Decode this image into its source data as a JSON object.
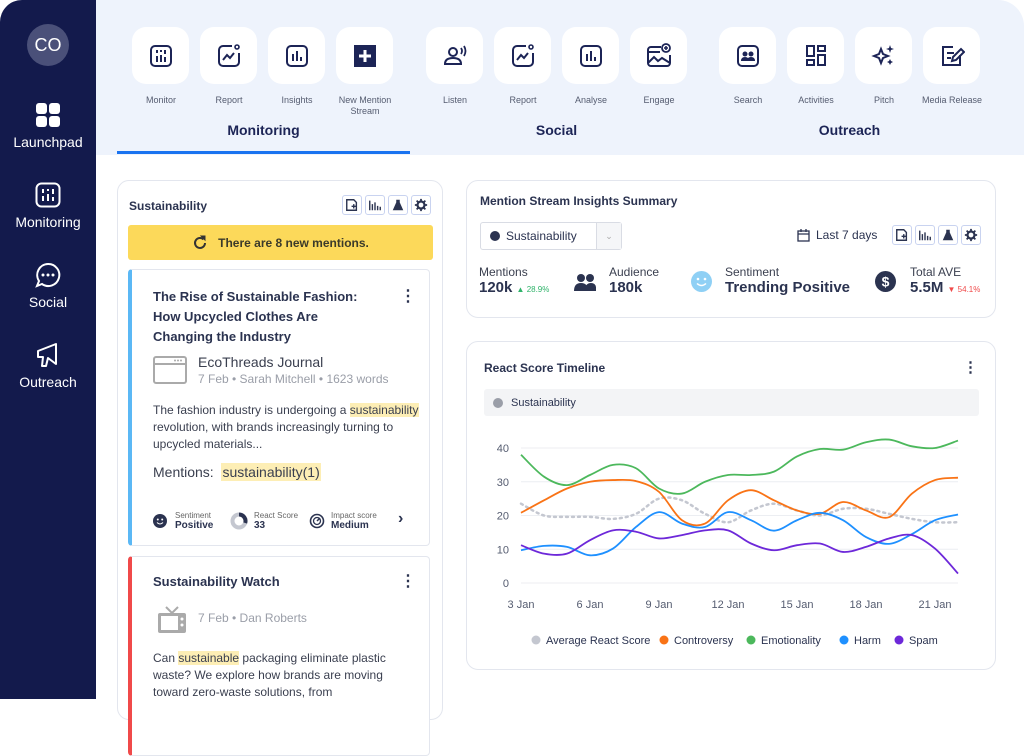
{
  "sidebar": {
    "avatar": "CO",
    "items": [
      {
        "label": "Launchpad",
        "icon": "grid-icon"
      },
      {
        "label": "Monitoring",
        "icon": "monitor-icon"
      },
      {
        "label": "Social",
        "icon": "chat-icon"
      },
      {
        "label": "Outreach",
        "icon": "megaphone-icon"
      }
    ]
  },
  "topnav": {
    "groups": [
      {
        "label": "Monitoring",
        "active": true,
        "items": [
          "Monitor",
          "Report",
          "Insights",
          "New Mention Stream"
        ]
      },
      {
        "label": "Social",
        "items": [
          "Listen",
          "Report",
          "Analyse",
          "Engage"
        ]
      },
      {
        "label": "Outreach",
        "items": [
          "Search",
          "Activities",
          "Pitch",
          "Media Release"
        ]
      }
    ]
  },
  "stream": {
    "title": "Sustainability",
    "banner": "There are 8 new mentions.",
    "mentions": [
      {
        "title": "The Rise of Sustainable Fashion: How Upcycled Clothes Are Changing the Industry",
        "source": "EcoThreads Journal",
        "meta": "7 Feb • Sarah Mitchell • 1623 words",
        "excerpt_pre": "The fashion industry is undergoing a ",
        "excerpt_hl": "sustainability",
        "excerpt_post": " revolution, with brands increasingly turning to upcycled materials...",
        "mentions_label": "Mentions:",
        "mentions_value": "sustainability(1)",
        "sentiment_label": "Sentiment",
        "sentiment": "Positive",
        "react_label": "React Score",
        "react": "33",
        "impact_label": "Impact score",
        "impact": "Medium",
        "accent": "#5bb8f5"
      },
      {
        "title": "Sustainability Watch",
        "meta": "7 Feb • Dan Roberts",
        "excerpt_pre": "Can ",
        "excerpt_hl": "sustainable",
        "excerpt_post": " packaging eliminate plastic waste? We explore how brands are moving toward zero-waste solutions, from",
        "accent": "#f04a4a"
      }
    ]
  },
  "summary": {
    "title": "Mention Stream Insights Summary",
    "select": "Sustainability",
    "range": "Last 7 days",
    "mentions_label": "Mentions",
    "mentions": "120k",
    "mentions_change": "28.9%",
    "audience_label": "Audience",
    "audience": "180k",
    "sentiment_label": "Sentiment",
    "sentiment": "Trending Positive",
    "ave_label": "Total AVE",
    "ave": "5.5M",
    "ave_change": "54.1%"
  },
  "timeline": {
    "title": "React Score Timeline",
    "filter": "Sustainability"
  },
  "chart_data": {
    "type": "line",
    "title": "React Score Timeline",
    "xlabel": "",
    "ylabel": "",
    "ylim": [
      0,
      40
    ],
    "yticks": [
      0,
      10,
      20,
      30,
      40
    ],
    "xticks": [
      "3 Jan",
      "6 Jan",
      "9 Jan",
      "12 Jan",
      "15 Jan",
      "18 Jan",
      "21 Jan"
    ],
    "x": [
      "3 Jan",
      "4 Jan",
      "5 Jan",
      "6 Jan",
      "7 Jan",
      "8 Jan",
      "9 Jan",
      "10 Jan",
      "11 Jan",
      "12 Jan",
      "13 Jan",
      "14 Jan",
      "15 Jan",
      "16 Jan",
      "17 Jan",
      "18 Jan",
      "19 Jan",
      "20 Jan",
      "21 Jan",
      "22 Jan"
    ],
    "grid": true,
    "legend": "bottom",
    "series": [
      {
        "name": "Average React Score",
        "color": "#c4c7d0",
        "dashed": true,
        "values": [
          23.5,
          20,
          19.6,
          19.6,
          19,
          20.5,
          25,
          24.5,
          20.5,
          18,
          21.5,
          23.5,
          21.5,
          20,
          22,
          22,
          20.5,
          19,
          18,
          18
        ]
      },
      {
        "name": "Controversy",
        "color": "#f97316",
        "values": [
          20.8,
          24.5,
          28,
          30,
          30.5,
          30.2,
          27,
          18.6,
          17.6,
          24.5,
          27.5,
          24.5,
          21.5,
          20.5,
          24,
          21.5,
          19.5,
          26.5,
          30.5,
          31.2
        ]
      },
      {
        "name": "Emotionality",
        "color": "#4cb85c",
        "values": [
          38,
          31.5,
          29,
          32,
          35,
          34,
          28,
          26.5,
          30,
          32,
          32,
          33,
          37.5,
          39.7,
          39.5,
          41.7,
          42.5,
          40.5,
          40,
          42.2
        ]
      },
      {
        "name": "Harm",
        "color": "#1e90ff",
        "values": [
          9.7,
          11,
          10.7,
          8.2,
          10.2,
          16.6,
          21,
          17.6,
          16.6,
          21,
          18.6,
          15.5,
          18.6,
          20.8,
          18.6,
          13.6,
          11.6,
          14.5,
          18.6,
          20.3
        ]
      },
      {
        "name": "Spam",
        "color": "#6d28d9",
        "values": [
          11.2,
          8.7,
          8.7,
          12.7,
          15.6,
          15.2,
          13.2,
          14.2,
          15.6,
          15.6,
          11.7,
          9.7,
          11.2,
          11.7,
          9.2,
          10.7,
          13.2,
          14.2,
          10.2,
          2.8
        ]
      }
    ]
  }
}
